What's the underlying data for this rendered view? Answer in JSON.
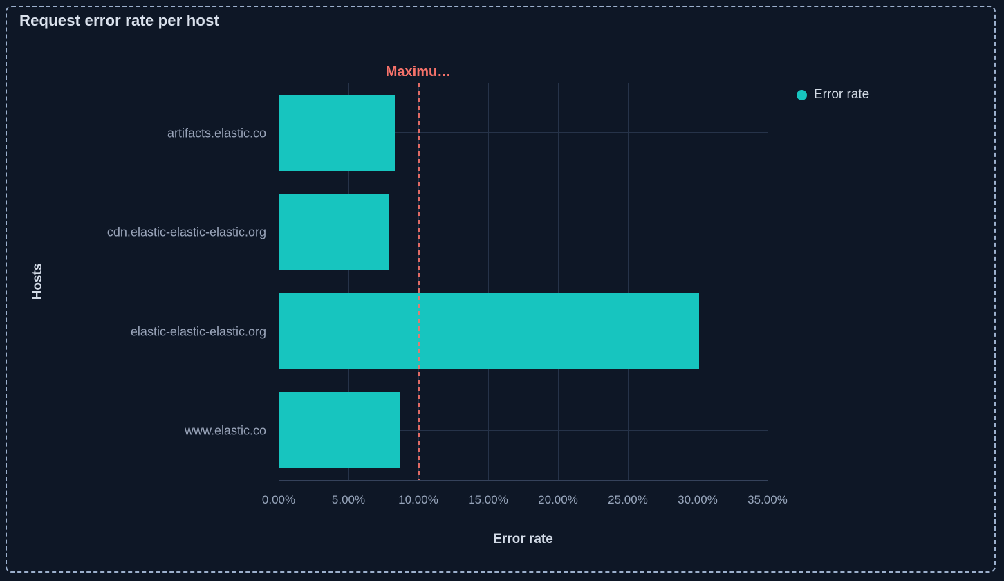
{
  "panel": {
    "title": "Request error rate per host"
  },
  "legend": {
    "position": "top-right",
    "items": [
      {
        "label": "Error rate",
        "swatch_color": "#17C5BF"
      }
    ]
  },
  "chart_data": {
    "type": "bar",
    "orientation": "horizontal",
    "title": "Request error rate per host",
    "categories": [
      "artifacts.elastic.co",
      "cdn.elastic-elastic-elastic.org",
      "elastic-elastic-elastic.org",
      "www.elastic.co"
    ],
    "series": [
      {
        "name": "Error rate",
        "color": "#17C5BF",
        "values": [
          8.3,
          7.9,
          30.1,
          8.7
        ]
      }
    ],
    "value_unit": "percent",
    "xlabel": "Error rate",
    "ylabel": "Hosts",
    "xlim": [
      0,
      35
    ],
    "x_ticks": [
      {
        "value": 0,
        "label": "0.00%"
      },
      {
        "value": 5,
        "label": "5.00%"
      },
      {
        "value": 10,
        "label": "10.00%"
      },
      {
        "value": 15,
        "label": "15.00%"
      },
      {
        "value": 20,
        "label": "20.00%"
      },
      {
        "value": 25,
        "label": "25.00%"
      },
      {
        "value": 30,
        "label": "30.00%"
      },
      {
        "value": 35,
        "label": "35.00%"
      }
    ],
    "grid": true,
    "legend_position": "right",
    "reference_line": {
      "label": "Maximu…",
      "value": 10,
      "color": "#F6726A",
      "style": "dashed"
    }
  },
  "colors": {
    "background": "#0E1726",
    "bar": "#17C5BF",
    "reference": "#F6726A",
    "grid": "#263349",
    "axis_line": "#35425B",
    "tick_text": "#98A6BC",
    "category_text": "#9AA5BA",
    "title_text": "#DAE1EC",
    "axis_title_text": "#D3DBE7",
    "legend_text": "#D4DCE6",
    "border_dash": "#9CB0CD"
  }
}
